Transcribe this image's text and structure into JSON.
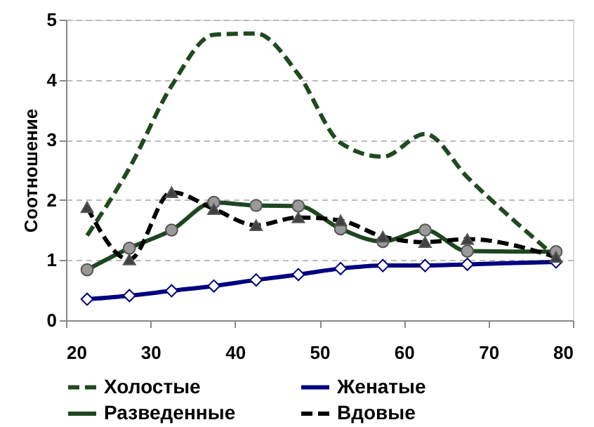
{
  "chart_data": {
    "type": "line",
    "ylabel": "Соотношение",
    "x": [
      22.5,
      27.5,
      32.5,
      37.5,
      42.5,
      47.5,
      52.5,
      57.5,
      62.5,
      67.5,
      78
    ],
    "series": [
      {
        "name": "Холостые",
        "color": "#1f4a1f",
        "line_style": "dashed",
        "marker": "none",
        "values": [
          1.41,
          2.53,
          3.9,
          4.75,
          4.77,
          4.09,
          2.95,
          2.72,
          3.1,
          2.38,
          1.05
        ]
      },
      {
        "name": "Женатые",
        "color": "#000080",
        "line_style": "solid",
        "marker": "diamond",
        "values": [
          0.35,
          0.41,
          0.49,
          0.57,
          0.67,
          0.76,
          0.86,
          0.91,
          0.91,
          0.93,
          0.97
        ]
      },
      {
        "name": "Разведенные",
        "color": "#1e4620",
        "line_style": "solid",
        "marker": "circle",
        "values": [
          0.84,
          1.2,
          1.5,
          1.96,
          1.91,
          1.9,
          1.52,
          1.31,
          1.5,
          1.15,
          1.14
        ]
      },
      {
        "name": "Вдовые",
        "color": "#000000",
        "line_style": "dashed",
        "marker": "triangle",
        "values": [
          1.88,
          1.01,
          2.13,
          1.85,
          1.58,
          1.71,
          1.66,
          1.39,
          1.3,
          1.35,
          1.05
        ]
      }
    ],
    "xlim": [
      20,
      80
    ],
    "xticks": [
      20,
      30,
      40,
      50,
      60,
      70,
      80
    ],
    "ylim": [
      0,
      5
    ],
    "yticks": [
      0,
      1,
      2,
      3,
      4,
      5
    ],
    "grid": "y",
    "legend": "bottom"
  }
}
